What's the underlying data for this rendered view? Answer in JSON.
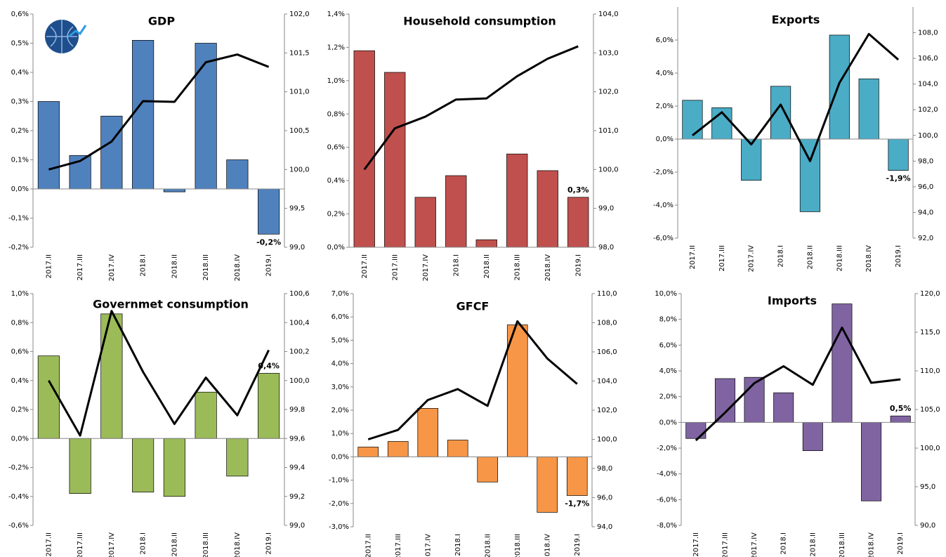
{
  "chart_data": [
    {
      "type": "combo",
      "title": "GDP",
      "categories": [
        "2017.II",
        "2017.III",
        "2017.IV",
        "2018.I",
        "2018.II",
        "2018.III",
        "2018.IV",
        "2019.I"
      ],
      "series": [
        {
          "type": "bar",
          "color": "#4f81bd",
          "values": [
            0.3,
            0.115,
            0.25,
            0.51,
            -0.01,
            0.5,
            0.1,
            -0.155
          ],
          "value_labels": [
            null,
            null,
            null,
            null,
            null,
            null,
            null,
            "-0,2%"
          ]
        },
        {
          "type": "line",
          "color": "#000000",
          "axis": "y2",
          "values": [
            100.0,
            100.11,
            100.36,
            100.88,
            100.87,
            101.38,
            101.48,
            101.32
          ]
        }
      ],
      "ylim": [
        -0.2,
        0.6
      ],
      "yticks": [
        {
          "value": -0.2,
          "label": "-0,2%"
        },
        {
          "value": -0.1,
          "label": "-0,1%"
        },
        {
          "value": 0,
          "label": "0,0%"
        },
        {
          "value": 0.1,
          "label": "0,1%"
        },
        {
          "value": 0.2,
          "label": "0,2%"
        },
        {
          "value": 0.3,
          "label": "0,3%"
        },
        {
          "value": 0.4,
          "label": "0,4%"
        },
        {
          "value": 0.5,
          "label": "0,5%"
        },
        {
          "value": 0.6,
          "label": "0,6%"
        }
      ],
      "y2lim": [
        99.0,
        102.0
      ],
      "y2ticks": [
        {
          "value": 99.0,
          "label": "99,0"
        },
        {
          "value": 99.5,
          "label": "99,5"
        },
        {
          "value": 100.0,
          "label": "100,0"
        },
        {
          "value": 100.5,
          "label": "100,5"
        },
        {
          "value": 101.0,
          "label": "101,0"
        },
        {
          "value": 101.5,
          "label": "101,5"
        },
        {
          "value": 102.0,
          "label": "102,0"
        }
      ]
    },
    {
      "type": "combo",
      "title": "Household consumption",
      "categories": [
        "2017.II",
        "2017.III",
        "2017.IV",
        "2018.I",
        "2018.II",
        "2018.III",
        "2018.IV",
        "2019.I"
      ],
      "series": [
        {
          "type": "bar",
          "color": "#c0504d",
          "values": [
            1.18,
            1.05,
            0.3,
            0.43,
            0.045,
            0.56,
            0.46,
            0.3
          ],
          "value_labels": [
            null,
            null,
            null,
            null,
            null,
            null,
            null,
            "0,3%"
          ]
        },
        {
          "type": "line",
          "color": "#000000",
          "axis": "y2",
          "values": [
            100.0,
            101.06,
            101.36,
            101.8,
            101.83,
            102.4,
            102.85,
            103.17
          ]
        }
      ],
      "ylim": [
        0,
        1.4
      ],
      "yticks": [
        {
          "value": 0,
          "label": "0,0%"
        },
        {
          "value": 0.2,
          "label": "0,2%"
        },
        {
          "value": 0.4,
          "label": "0,4%"
        },
        {
          "value": 0.6,
          "label": "0,6%"
        },
        {
          "value": 0.8,
          "label": "0,8%"
        },
        {
          "value": 1.0,
          "label": "1,0%"
        },
        {
          "value": 1.2,
          "label": "1,2%"
        },
        {
          "value": 1.4,
          "label": "1,4%"
        }
      ],
      "y2lim": [
        98.0,
        104.0
      ],
      "y2ticks": [
        {
          "value": 98,
          "label": "98,0"
        },
        {
          "value": 99,
          "label": "99,0"
        },
        {
          "value": 100,
          "label": "100,0"
        },
        {
          "value": 101,
          "label": "101,0"
        },
        {
          "value": 102,
          "label": "102,0"
        },
        {
          "value": 103,
          "label": "103,0"
        },
        {
          "value": 104,
          "label": "104,0"
        }
      ]
    },
    {
      "type": "combo",
      "title": "Exports",
      "categories": [
        "2017.II",
        "2017.III",
        "2017.IV",
        "2018.I",
        "2018.II",
        "2018.III",
        "2018.IV",
        "2019.I"
      ],
      "series": [
        {
          "type": "bar",
          "color": "#4bacc6",
          "values": [
            2.35,
            1.9,
            -2.5,
            3.2,
            -4.4,
            6.3,
            3.65,
            -1.9
          ],
          "value_labels": [
            null,
            null,
            null,
            null,
            null,
            null,
            null,
            "-1,9%"
          ]
        },
        {
          "type": "line",
          "color": "#000000",
          "axis": "y2",
          "values": [
            100.0,
            101.8,
            99.3,
            102.4,
            98.0,
            104.1,
            107.9,
            105.9
          ]
        }
      ],
      "ylim": [
        -6,
        8
      ],
      "yticks": [
        {
          "value": -6,
          "label": "-6,0%"
        },
        {
          "value": -4,
          "label": "-4,0%"
        },
        {
          "value": -2,
          "label": "-2,0%"
        },
        {
          "value": 0,
          "label": "0,0%"
        },
        {
          "value": 2,
          "label": "2,0%"
        },
        {
          "value": 4,
          "label": "4,0%"
        },
        {
          "value": 6,
          "label": "6,0%"
        }
      ],
      "y2lim": [
        92.0,
        110.0
      ],
      "y2ticks": [
        {
          "value": 92,
          "label": "92,0"
        },
        {
          "value": 94,
          "label": "94,0"
        },
        {
          "value": 96,
          "label": "96,0"
        },
        {
          "value": 98,
          "label": "98,0"
        },
        {
          "value": 100,
          "label": "100,0"
        },
        {
          "value": 102,
          "label": "102,0"
        },
        {
          "value": 104,
          "label": "104,0"
        },
        {
          "value": 106,
          "label": "106,0"
        },
        {
          "value": 108,
          "label": "108,0"
        }
      ]
    },
    {
      "type": "combo",
      "title": "Governmet consumption",
      "categories": [
        "2017.II",
        "2017.III",
        "2017.IV",
        "2018.I",
        "2018.II",
        "2018.III",
        "2018.IV",
        "2019.I"
      ],
      "series": [
        {
          "type": "bar",
          "color": "#9bbb59",
          "values": [
            0.57,
            -0.38,
            0.86,
            -0.37,
            -0.4,
            0.32,
            -0.26,
            0.45
          ],
          "value_labels": [
            null,
            null,
            null,
            null,
            null,
            null,
            null,
            "0,4%"
          ]
        },
        {
          "type": "line",
          "color": "#000000",
          "axis": "y2",
          "values": [
            100.0,
            99.62,
            100.48,
            100.06,
            99.7,
            100.02,
            99.76,
            100.21
          ]
        }
      ],
      "ylim": [
        -0.6,
        1.0
      ],
      "yticks": [
        {
          "value": -0.6,
          "label": "-0,6%"
        },
        {
          "value": -0.4,
          "label": "-0,4%"
        },
        {
          "value": -0.2,
          "label": "-0,2%"
        },
        {
          "value": 0,
          "label": "0,0%"
        },
        {
          "value": 0.2,
          "label": "0,2%"
        },
        {
          "value": 0.4,
          "label": "0,4%"
        },
        {
          "value": 0.6,
          "label": "0,6%"
        },
        {
          "value": 0.8,
          "label": "0,8%"
        },
        {
          "value": 1.0,
          "label": "1,0%"
        }
      ],
      "y2lim": [
        99.0,
        100.6
      ],
      "y2ticks": [
        {
          "value": 99.0,
          "label": "99,0"
        },
        {
          "value": 99.2,
          "label": "99,2"
        },
        {
          "value": 99.4,
          "label": "99,4"
        },
        {
          "value": 99.6,
          "label": "99,6"
        },
        {
          "value": 99.8,
          "label": "99,8"
        },
        {
          "value": 100.0,
          "label": "100,0"
        },
        {
          "value": 100.2,
          "label": "100,2"
        },
        {
          "value": 100.4,
          "label": "100,4"
        },
        {
          "value": 100.6,
          "label": "100,6"
        }
      ]
    },
    {
      "type": "combo",
      "title": "GFCF",
      "categories": [
        "2017.II",
        "2017.III",
        "2017.IV",
        "2018.I",
        "2018.II",
        "2018.III",
        "2018.IV",
        "2019.I"
      ],
      "series": [
        {
          "type": "bar",
          "color": "#f79646",
          "values": [
            0.42,
            0.66,
            2.08,
            0.72,
            -1.08,
            5.66,
            -2.38,
            -1.66
          ],
          "value_labels": [
            null,
            null,
            null,
            null,
            null,
            null,
            null,
            "-1,7%"
          ]
        },
        {
          "type": "line",
          "color": "#000000",
          "axis": "y2",
          "values": [
            100.0,
            100.65,
            102.7,
            103.45,
            102.3,
            108.1,
            105.55,
            103.8
          ]
        }
      ],
      "ylim": [
        -3,
        7
      ],
      "yticks": [
        {
          "value": -3,
          "label": "-3,0%"
        },
        {
          "value": -2,
          "label": "-2,0%"
        },
        {
          "value": -1,
          "label": "-1,0%"
        },
        {
          "value": 0,
          "label": "0,0%"
        },
        {
          "value": 1,
          "label": "1,0%"
        },
        {
          "value": 2,
          "label": "2,0%"
        },
        {
          "value": 3,
          "label": "3,0%"
        },
        {
          "value": 4,
          "label": "4,0%"
        },
        {
          "value": 5,
          "label": "5,0%"
        },
        {
          "value": 6,
          "label": "6,0%"
        },
        {
          "value": 7,
          "label": "7,0%"
        }
      ],
      "y2lim": [
        94.0,
        110.0
      ],
      "y2ticks": [
        {
          "value": 94,
          "label": "94,0"
        },
        {
          "value": 96,
          "label": "96,0"
        },
        {
          "value": 98,
          "label": "98,0"
        },
        {
          "value": 100,
          "label": "100,0"
        },
        {
          "value": 102,
          "label": "102,0"
        },
        {
          "value": 104,
          "label": "104,0"
        },
        {
          "value": 106,
          "label": "106,0"
        },
        {
          "value": 108,
          "label": "108,0"
        },
        {
          "value": 110,
          "label": "110,0"
        }
      ]
    },
    {
      "type": "combo",
      "title": "Imports",
      "categories": [
        "2017.II",
        "2017.III",
        "2017.IV",
        "2018.I",
        "2018.II",
        "2018.III",
        "2018.IV",
        "2019.I"
      ],
      "series": [
        {
          "type": "bar",
          "color": "#8064a2",
          "values": [
            -1.25,
            3.4,
            3.5,
            2.3,
            -2.2,
            9.2,
            -6.1,
            0.5
          ],
          "value_labels": [
            null,
            null,
            null,
            null,
            null,
            null,
            null,
            "0,5%"
          ]
        },
        {
          "type": "line",
          "color": "#000000",
          "axis": "y2",
          "values": [
            101.0,
            104.6,
            108.4,
            110.6,
            108.2,
            115.6,
            108.45,
            108.9
          ]
        }
      ],
      "ylim": [
        -8,
        10
      ],
      "yticks": [
        {
          "value": -8,
          "label": "-8,0%"
        },
        {
          "value": -6,
          "label": "-6,0%"
        },
        {
          "value": -4,
          "label": "-4,0%"
        },
        {
          "value": -2,
          "label": "-2,0%"
        },
        {
          "value": 0,
          "label": "0,0%"
        },
        {
          "value": 2,
          "label": "2,0%"
        },
        {
          "value": 4,
          "label": "4,0%"
        },
        {
          "value": 6,
          "label": "6,0%"
        },
        {
          "value": 8,
          "label": "8,0%"
        },
        {
          "value": 10,
          "label": "10,0%"
        }
      ],
      "y2lim": [
        90.0,
        120.0
      ],
      "y2ticks": [
        {
          "value": 90,
          "label": "90,0"
        },
        {
          "value": 95,
          "label": "95,0"
        },
        {
          "value": 100,
          "label": "100,0"
        },
        {
          "value": 105,
          "label": "105,0"
        },
        {
          "value": 110,
          "label": "110,0"
        },
        {
          "value": 115,
          "label": "115,0"
        },
        {
          "value": 120,
          "label": "120,0"
        }
      ]
    }
  ]
}
